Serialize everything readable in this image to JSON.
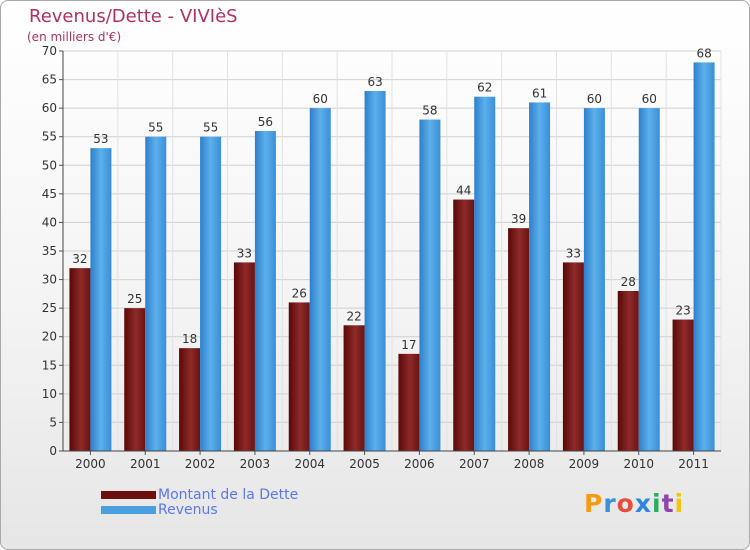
{
  "header": {
    "title": "Revenus/Dette - VIVIèS",
    "subtitle": "(en milliers d'€)"
  },
  "chart_data": {
    "type": "bar",
    "categories": [
      "2000",
      "2001",
      "2002",
      "2003",
      "2004",
      "2005",
      "2006",
      "2007",
      "2008",
      "2009",
      "2010",
      "2011"
    ],
    "series": [
      {
        "name": "Montant de la Dette",
        "values": [
          32,
          25,
          18,
          33,
          26,
          22,
          17,
          44,
          39,
          33,
          28,
          23
        ],
        "color": "#7a1a1a"
      },
      {
        "name": "Revenus",
        "values": [
          53,
          55,
          55,
          56,
          60,
          63,
          58,
          62,
          61,
          60,
          60,
          68
        ],
        "color": "#4a9fe0"
      }
    ],
    "ylim": [
      0,
      70
    ],
    "yticks": [
      0,
      5,
      10,
      15,
      20,
      25,
      30,
      35,
      40,
      45,
      50,
      55,
      60,
      65,
      70
    ],
    "grid": true,
    "data_labels": true,
    "legend_position": "bottom-left"
  },
  "legend": {
    "items": [
      {
        "label": "Montant de la Dette",
        "color": "#6b0f0f"
      },
      {
        "label": "Revenus",
        "color": "#4a9fe0"
      }
    ]
  },
  "logo": {
    "letters": [
      "P",
      "r",
      "o",
      "x",
      "i",
      "t",
      "i"
    ],
    "colors": [
      "#f39c12",
      "#3a8fd8",
      "#e74c3c",
      "#2e86de",
      "#27ae60",
      "#8e44ad",
      "#f1c40f"
    ]
  }
}
